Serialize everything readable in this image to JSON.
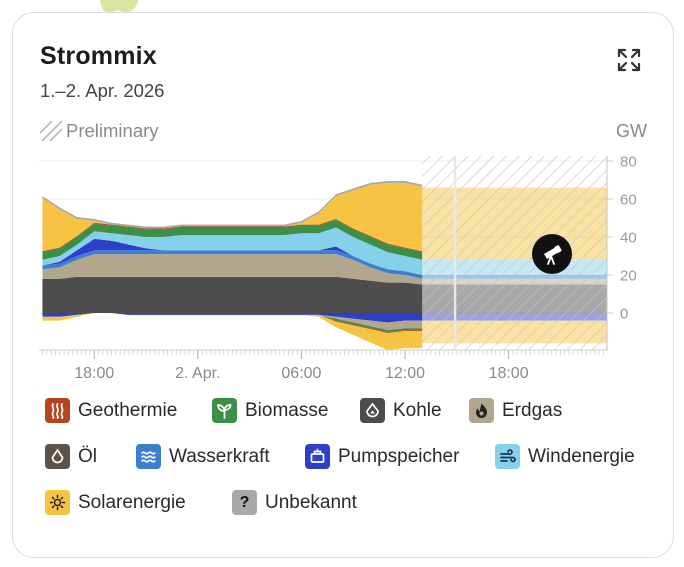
{
  "widget": {
    "title": "Strommix",
    "subtitle": "1.–2. Apr. 2026",
    "preliminary_label": "Preliminary",
    "unit": "GW"
  },
  "legend": [
    {
      "label": "Geothermie",
      "color": "#b5451f",
      "icon": "heat-waves-icon"
    },
    {
      "label": "Biomasse",
      "color": "#3c8f47",
      "icon": "sprout-icon"
    },
    {
      "label": "Kohle",
      "color": "#4d4d4d",
      "icon": "coal-drop-icon"
    },
    {
      "label": "Erdgas",
      "color": "#b3a68f",
      "icon": "gas-flame-icon"
    },
    {
      "label": "Öl",
      "color": "#5e504b",
      "icon": "oil-drop-icon"
    },
    {
      "label": "Wasserkraft",
      "color": "#3b7fd1",
      "icon": "water-waves-icon"
    },
    {
      "label": "Pumpspeicher",
      "color": "#2f3ec8",
      "icon": "battery-icon"
    },
    {
      "label": "Windenergie",
      "color": "#86d1ea",
      "icon": "wind-icon"
    },
    {
      "label": "Solarenergie",
      "color": "#f6c442",
      "icon": "sun-icon"
    },
    {
      "label": "Unbekannt",
      "color": "#a9a9a9",
      "icon": "question-mark-icon"
    }
  ],
  "chart_data": {
    "type": "area",
    "title": "Strommix",
    "ylabel": "GW",
    "ylim": [
      -18,
      82
    ],
    "yticks": [
      80,
      60,
      40,
      20,
      0
    ],
    "x_hours_range": [
      14.8,
      47.7
    ],
    "xticks": [
      {
        "label": "18:00",
        "hour": 18
      },
      {
        "label": "2. Apr.",
        "hour": 24
      },
      {
        "label": "06:00",
        "hour": 30
      },
      {
        "label": "12:00",
        "hour": 36
      },
      {
        "label": "18:00",
        "hour": 42
      }
    ],
    "preliminary_from_hour": 37.0,
    "now_hour": 38.9,
    "x": [
      15,
      16,
      17,
      18,
      19,
      20,
      21,
      22,
      23,
      24,
      25,
      26,
      27,
      28,
      29,
      30,
      31,
      32,
      33,
      34,
      35,
      36,
      37
    ],
    "series": [
      {
        "name": "Kohle",
        "values": [
          18,
          18,
          19,
          19,
          19,
          19,
          19,
          19,
          19,
          19,
          19,
          19,
          19,
          19,
          19,
          19,
          19,
          19,
          18,
          17,
          16,
          16,
          15
        ]
      },
      {
        "name": "Erdgas",
        "values": [
          5,
          6,
          9,
          12,
          12,
          12,
          12,
          12,
          12,
          12,
          12,
          12,
          12,
          12,
          12,
          12,
          12,
          12,
          10,
          7,
          5,
          4,
          3
        ]
      },
      {
        "name": "Wasserkraft",
        "values": [
          2,
          2,
          2,
          2,
          2,
          2,
          2,
          2,
          2,
          2,
          2,
          2,
          2,
          2,
          2,
          2,
          2,
          2,
          2,
          2,
          2,
          2,
          2
        ]
      },
      {
        "name": "Pumpspeicher",
        "values": [
          0,
          1,
          3,
          6,
          5,
          3,
          1,
          0,
          0,
          0,
          0,
          0,
          0,
          0,
          0,
          0,
          0,
          2,
          0,
          0,
          0,
          0,
          0
        ]
      },
      {
        "name": "Windenergie",
        "values": [
          3,
          3,
          3,
          4,
          4,
          5,
          6,
          7,
          8,
          8,
          8,
          8,
          8,
          8,
          8,
          9,
          9,
          10,
          10,
          10,
          9,
          8,
          8
        ]
      },
      {
        "name": "Biomasse",
        "values": [
          4,
          4,
          4,
          4,
          4,
          4,
          4,
          4,
          4,
          4,
          4,
          4,
          4,
          4,
          4,
          4,
          4,
          4,
          4,
          4,
          4,
          4,
          4
        ]
      },
      {
        "name": "Geothermie",
        "values": [
          0.5,
          0.5,
          0.5,
          0.5,
          0.5,
          0.5,
          0.5,
          0.5,
          0.5,
          0.5,
          0.5,
          0.5,
          0.5,
          0.5,
          0.5,
          0.5,
          0.5,
          0.5,
          0.5,
          0.5,
          0.5,
          0.5,
          0.5
        ]
      },
      {
        "name": "Solarenergie",
        "values": [
          28,
          20,
          9,
          1,
          0,
          0,
          0,
          0,
          0,
          0,
          0,
          0,
          0,
          0,
          0,
          1,
          6,
          12,
          20,
          27,
          32,
          34,
          34
        ]
      },
      {
        "name": "Unbekannt",
        "values": [
          1,
          1,
          1,
          1,
          1,
          1,
          1,
          1,
          1,
          1,
          1,
          1,
          1,
          1,
          1,
          1,
          1,
          1,
          1,
          1,
          1,
          1,
          1
        ]
      }
    ],
    "negative_series": [
      {
        "name": "Pumpspeicher",
        "values": [
          -2,
          -2,
          -1,
          0,
          0,
          -1,
          -1,
          -1,
          -1,
          -1,
          -1,
          -1,
          -1,
          -1,
          -1,
          -1,
          -1,
          -2,
          -3,
          -4,
          -5,
          -4,
          -4
        ]
      },
      {
        "name": "Erdgas",
        "values": [
          0,
          0,
          0,
          0,
          0,
          0,
          0,
          0,
          0,
          0,
          0,
          0,
          0,
          0,
          0,
          0,
          0,
          -1,
          -2,
          -3,
          -4,
          -4,
          -4
        ]
      },
      {
        "name": "Biomasse",
        "values": [
          0,
          0,
          0,
          0,
          0,
          0,
          0,
          0,
          0,
          0,
          0,
          0,
          0,
          0,
          0,
          0,
          0,
          -1,
          -1,
          -1,
          -1,
          -1,
          -1
        ]
      },
      {
        "name": "Geothermie",
        "values": [
          0,
          0,
          0,
          0,
          0,
          0,
          0,
          0,
          0,
          0,
          0,
          0,
          0,
          0,
          0,
          0,
          0,
          -0.5,
          -0.5,
          -0.5,
          -0.5,
          -0.5,
          -0.5
        ]
      },
      {
        "name": "Solarenergie",
        "values": [
          -2,
          -2,
          -1,
          0,
          0,
          0,
          0,
          0,
          0,
          0,
          0,
          0,
          0,
          0,
          0,
          0,
          -1,
          -3,
          -5,
          -7,
          -9,
          -9,
          -9
        ]
      }
    ],
    "forecast": [
      {
        "name": "Kohle",
        "value": 15
      },
      {
        "name": "Erdgas",
        "value": 3
      },
      {
        "name": "Wasserkraft",
        "value": 2
      },
      {
        "name": "Windenergie",
        "value": 8
      },
      {
        "name": "Solarenergie",
        "value": 38
      },
      {
        "name": "Pumpspeicher",
        "value": -4
      },
      {
        "name": "Solarenergie",
        "value": -12
      }
    ]
  }
}
